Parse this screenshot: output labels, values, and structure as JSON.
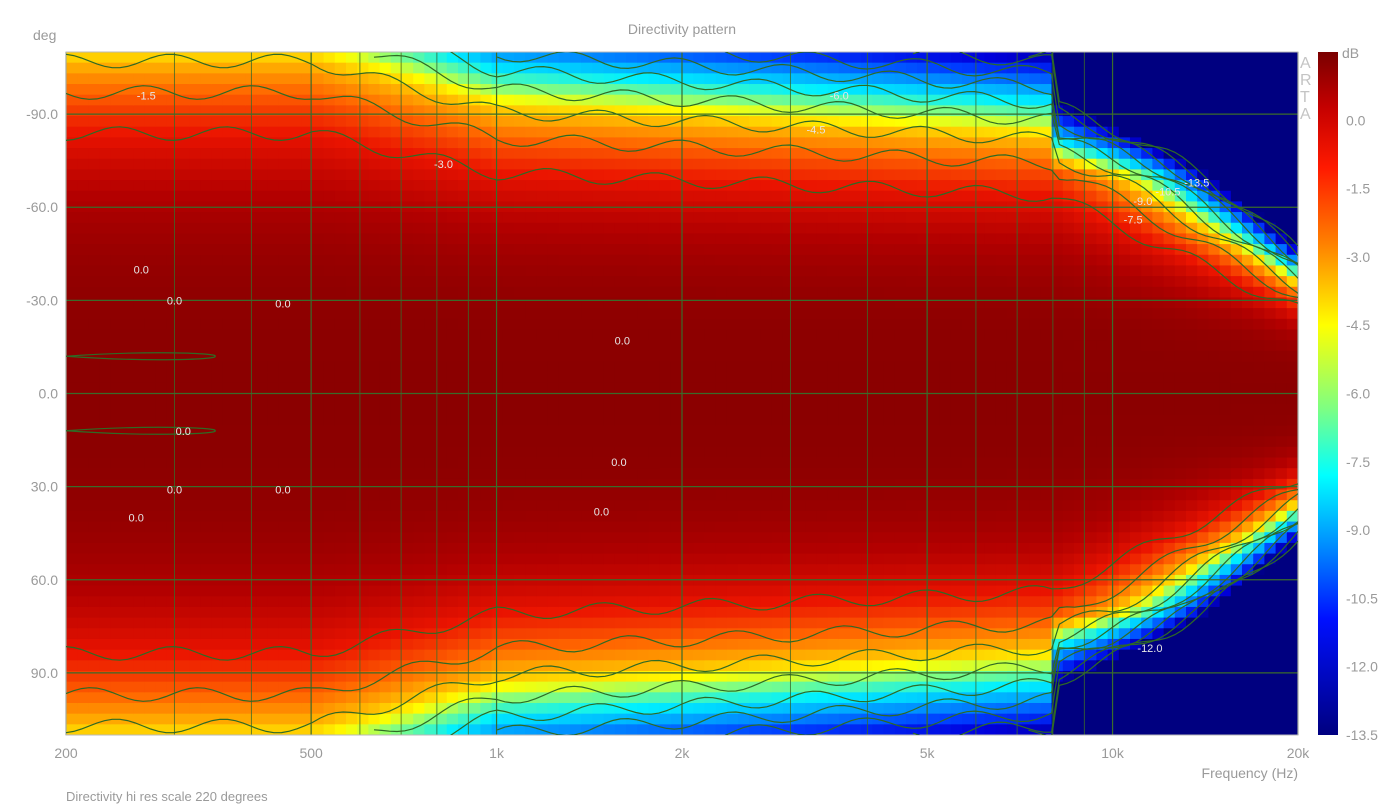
{
  "chart_data": {
    "type": "heatmap",
    "title": "Directivity pattern",
    "xlabel": "Frequency (Hz)",
    "ylabel": "deg",
    "footer": "Directivity hi res scale 220 degrees",
    "watermark": "ARTA",
    "x_scale": "log",
    "xlim": [
      200,
      20000
    ],
    "ylim": [
      -110,
      110
    ],
    "x_ticks": [
      {
        "value": 200,
        "label": "200"
      },
      {
        "value": 500,
        "label": "500"
      },
      {
        "value": 1000,
        "label": "1k"
      },
      {
        "value": 2000,
        "label": "2k"
      },
      {
        "value": 5000,
        "label": "5k"
      },
      {
        "value": 10000,
        "label": "10k"
      },
      {
        "value": 20000,
        "label": "20k"
      }
    ],
    "y_ticks": [
      {
        "value": -90,
        "label": "-90.0"
      },
      {
        "value": -60,
        "label": "-60.0"
      },
      {
        "value": -30,
        "label": "-30.0"
      },
      {
        "value": 0,
        "label": "0.0"
      },
      {
        "value": 30,
        "label": "30.0"
      },
      {
        "value": 60,
        "label": "60.0"
      },
      {
        "value": 90,
        "label": "90.0"
      }
    ],
    "colorbar": {
      "unit": "dB",
      "min": -13.5,
      "max": 1.5,
      "ticks": [
        "0.0",
        "-1.5",
        "-3.0",
        "-4.5",
        "-6.0",
        "-7.5",
        "-9.0",
        "-10.5",
        "-12.0",
        "-13.5"
      ]
    },
    "minor_grid_x": [
      300,
      400,
      600,
      700,
      800,
      900,
      3000,
      4000,
      6000,
      7000,
      8000,
      9000
    ],
    "contour_labels": [
      {
        "freq": 270,
        "angle": -96,
        "text": "-1.5"
      },
      {
        "freq": 820,
        "angle": -74,
        "text": "-3.0"
      },
      {
        "freq": 265,
        "angle": -40,
        "text": "0.0"
      },
      {
        "freq": 300,
        "angle": -30,
        "text": "0.0"
      },
      {
        "freq": 450,
        "angle": -29,
        "text": "0.0"
      },
      {
        "freq": 1600,
        "angle": -17,
        "text": "0.0"
      },
      {
        "freq": 310,
        "angle": 12,
        "text": "0.0"
      },
      {
        "freq": 1580,
        "angle": 22,
        "text": "0.0"
      },
      {
        "freq": 300,
        "angle": 31,
        "text": "0.0"
      },
      {
        "freq": 450,
        "angle": 31,
        "text": "0.0"
      },
      {
        "freq": 1480,
        "angle": 38,
        "text": "0.0"
      },
      {
        "freq": 260,
        "angle": 40,
        "text": "0.0"
      },
      {
        "freq": 3600,
        "angle": -96,
        "text": "-6.0"
      },
      {
        "freq": 3300,
        "angle": -85,
        "text": "-4.5"
      },
      {
        "freq": 12300,
        "angle": -65,
        "text": "-10.5"
      },
      {
        "freq": 13700,
        "angle": -68,
        "text": "-13.5"
      },
      {
        "freq": 11200,
        "angle": -62,
        "text": "-9.0"
      },
      {
        "freq": 10800,
        "angle": -56,
        "text": "-7.5"
      },
      {
        "freq": 11500,
        "angle": 82,
        "text": "-12.0"
      }
    ]
  }
}
